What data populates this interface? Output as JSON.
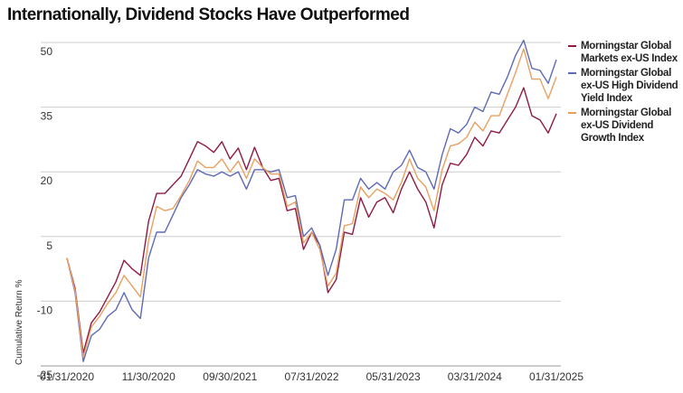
{
  "chart_data": {
    "type": "line",
    "title": "Internationally, Dividend Stocks Have Outperformed",
    "y_label": "Cumulative Return %",
    "categories": [
      "01/31/2020",
      null,
      null,
      null,
      null,
      null,
      null,
      null,
      null,
      null,
      "11/30/2020",
      null,
      null,
      null,
      null,
      null,
      null,
      null,
      null,
      null,
      "09/30/2021",
      null,
      null,
      null,
      null,
      null,
      null,
      null,
      null,
      null,
      "07/31/2022",
      null,
      null,
      null,
      null,
      null,
      null,
      null,
      null,
      null,
      "05/31/2023",
      null,
      null,
      null,
      null,
      null,
      null,
      null,
      null,
      null,
      "03/31/2024",
      null,
      null,
      null,
      null,
      null,
      null,
      null,
      null,
      null,
      "01/31/2025"
    ],
    "series": [
      {
        "name": "Morningstar Global Markets ex-US Index",
        "color": "#8e1a45",
        "values": [
          0,
          -7,
          -22,
          -15,
          -12.5,
          -9,
          -5.5,
          -0.5,
          -2.5,
          -4,
          8.5,
          15,
          15,
          17,
          19,
          23,
          27,
          26,
          24.5,
          27,
          23,
          25.5,
          20.5,
          25.7,
          21,
          18,
          18.5,
          11,
          11.5,
          2,
          6,
          3,
          -8,
          -5,
          6,
          5.5,
          14,
          9.5,
          13,
          14,
          10.5,
          16,
          20,
          16,
          13,
          7,
          17,
          22,
          21.5,
          24,
          28,
          26,
          29.5,
          29,
          32,
          35,
          39.5,
          33,
          32,
          29,
          33.5
        ]
      },
      {
        "name": "Morningstar Global ex-US High Dividend Yield Index",
        "color": "#5f6ab5",
        "values": [
          0,
          -8,
          -24,
          -18,
          -16.5,
          -13.5,
          -12,
          -8,
          -12,
          -14,
          0,
          6,
          6,
          10,
          14,
          17,
          20.5,
          19.5,
          19,
          20,
          19,
          20,
          16,
          20.5,
          20.5,
          20,
          20.5,
          14,
          14.5,
          5,
          7,
          3,
          -4,
          2,
          13.5,
          13.5,
          18.5,
          16,
          17.5,
          16,
          20,
          21.5,
          25,
          21,
          20,
          16,
          24,
          30,
          29,
          31,
          35,
          34,
          38.5,
          38,
          42,
          47,
          50.5,
          44,
          43.5,
          40.5,
          46
        ]
      },
      {
        "name": "Morningstar Global ex-US Dividend Growth Index",
        "color": "#e8a060",
        "values": [
          0,
          -7.5,
          -23,
          -16,
          -13.5,
          -10.5,
          -8,
          -4,
          -6.5,
          -9,
          4,
          12,
          11,
          11.5,
          14.5,
          18,
          22.5,
          21,
          21,
          23,
          20,
          22.5,
          18.5,
          23,
          21,
          19.5,
          19.5,
          12,
          13,
          3.5,
          6,
          2,
          -6.5,
          -3.5,
          7.5,
          8,
          16.5,
          14,
          16,
          15,
          13.5,
          17.5,
          23,
          18.5,
          16.5,
          11,
          20.5,
          26,
          26.5,
          28,
          31.5,
          29.5,
          33,
          33,
          38,
          43,
          48.5,
          41.5,
          41.5,
          37,
          42
        ]
      }
    ],
    "ylim": [
      -25,
      50
    ],
    "yticks": [
      -25,
      -10,
      5,
      20,
      35,
      50
    ],
    "grid": true
  }
}
